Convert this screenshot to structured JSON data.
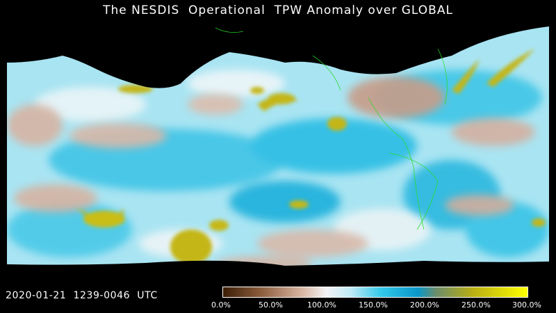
{
  "title": "The NESDIS  Operational  TPW Anomaly over GLOBAL",
  "timestamp": "2020-01-21  1239-0046  UTC",
  "colorbar": {
    "ticks": [
      "0.0%",
      "50.0%",
      "100.0%",
      "150.0%",
      "200.0%",
      "250.0%",
      "300.0%"
    ],
    "colors": [
      "#3a1d05",
      "#8a5a3a",
      "#d9b6a3",
      "#f3f3f6",
      "#bfeaf5",
      "#32c8ea",
      "#0a97c9",
      "#6b8d6a",
      "#b9ad14",
      "#ffff00"
    ]
  },
  "map": {
    "background_color": "#000000",
    "coastline_color": "#22dd22"
  }
}
